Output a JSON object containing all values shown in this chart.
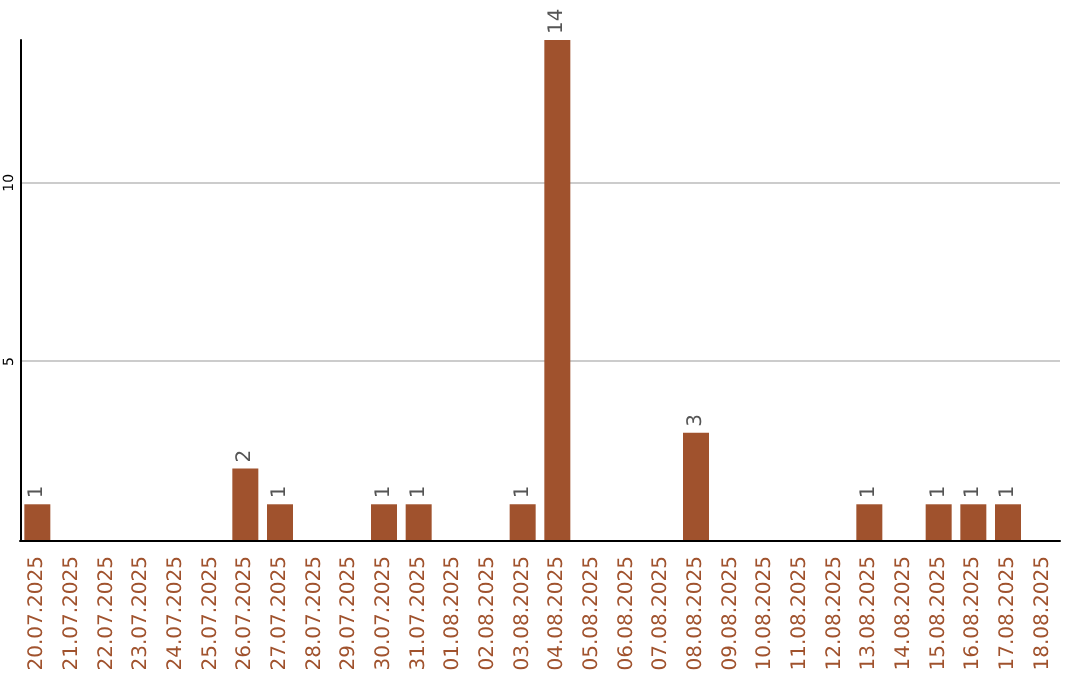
{
  "chart_data": {
    "type": "bar",
    "categories": [
      "20.07.2025",
      "21.07.2025",
      "22.07.2025",
      "23.07.2025",
      "24.07.2025",
      "25.07.2025",
      "26.07.2025",
      "27.07.2025",
      "28.07.2025",
      "29.07.2025",
      "30.07.2025",
      "31.07.2025",
      "01.08.2025",
      "02.08.2025",
      "03.08.2025",
      "04.08.2025",
      "05.08.2025",
      "06.08.2025",
      "07.08.2025",
      "08.08.2025",
      "09.08.2025",
      "10.08.2025",
      "11.08.2025",
      "12.08.2025",
      "13.08.2025",
      "14.08.2025",
      "15.08.2025",
      "16.08.2025",
      "17.08.2025",
      "18.08.2025"
    ],
    "values": [
      1,
      0,
      0,
      0,
      0,
      0,
      2,
      1,
      0,
      0,
      1,
      1,
      0,
      0,
      1,
      14,
      0,
      0,
      0,
      3,
      0,
      0,
      0,
      0,
      1,
      0,
      1,
      1,
      1,
      0
    ],
    "value_labels": [
      "1",
      null,
      null,
      null,
      null,
      null,
      "2",
      "1",
      null,
      null,
      "1",
      "1",
      null,
      null,
      "1",
      "14",
      null,
      null,
      null,
      "3",
      null,
      null,
      null,
      null,
      "1",
      null,
      "1",
      "1",
      "1",
      null
    ],
    "color": "#a0522d",
    "ylim": [
      0,
      14
    ],
    "yticks": [
      5,
      10
    ],
    "grid": "y"
  }
}
